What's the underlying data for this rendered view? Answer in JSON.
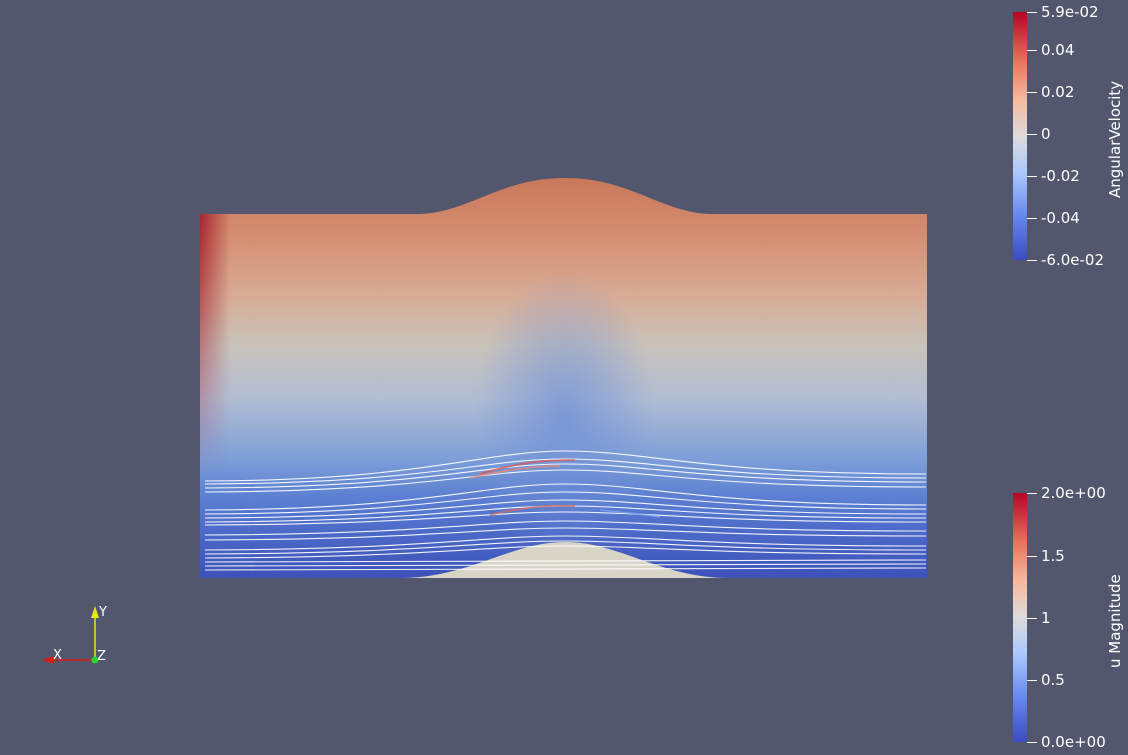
{
  "scene": {
    "background": "#52576e",
    "surface_colormap": "AngularVelocity",
    "streamline_color": "#ffffff"
  },
  "legend_top": {
    "title": "AngularVelocity",
    "ticks": [
      "5.9e-02",
      "0.04",
      "0.02",
      "0",
      "-0.02",
      "-0.04",
      "-6.0e-02"
    ]
  },
  "legend_bottom": {
    "title": "u Magnitude",
    "ticks": [
      "2.0e+00",
      "1.5",
      "1",
      "0.5",
      "0.0e+00"
    ]
  },
  "axes": {
    "x": "X",
    "y": "Y",
    "z": "Z",
    "x_color": "#e01818",
    "y_color": "#e6e61a",
    "z_color": "#28d628"
  }
}
